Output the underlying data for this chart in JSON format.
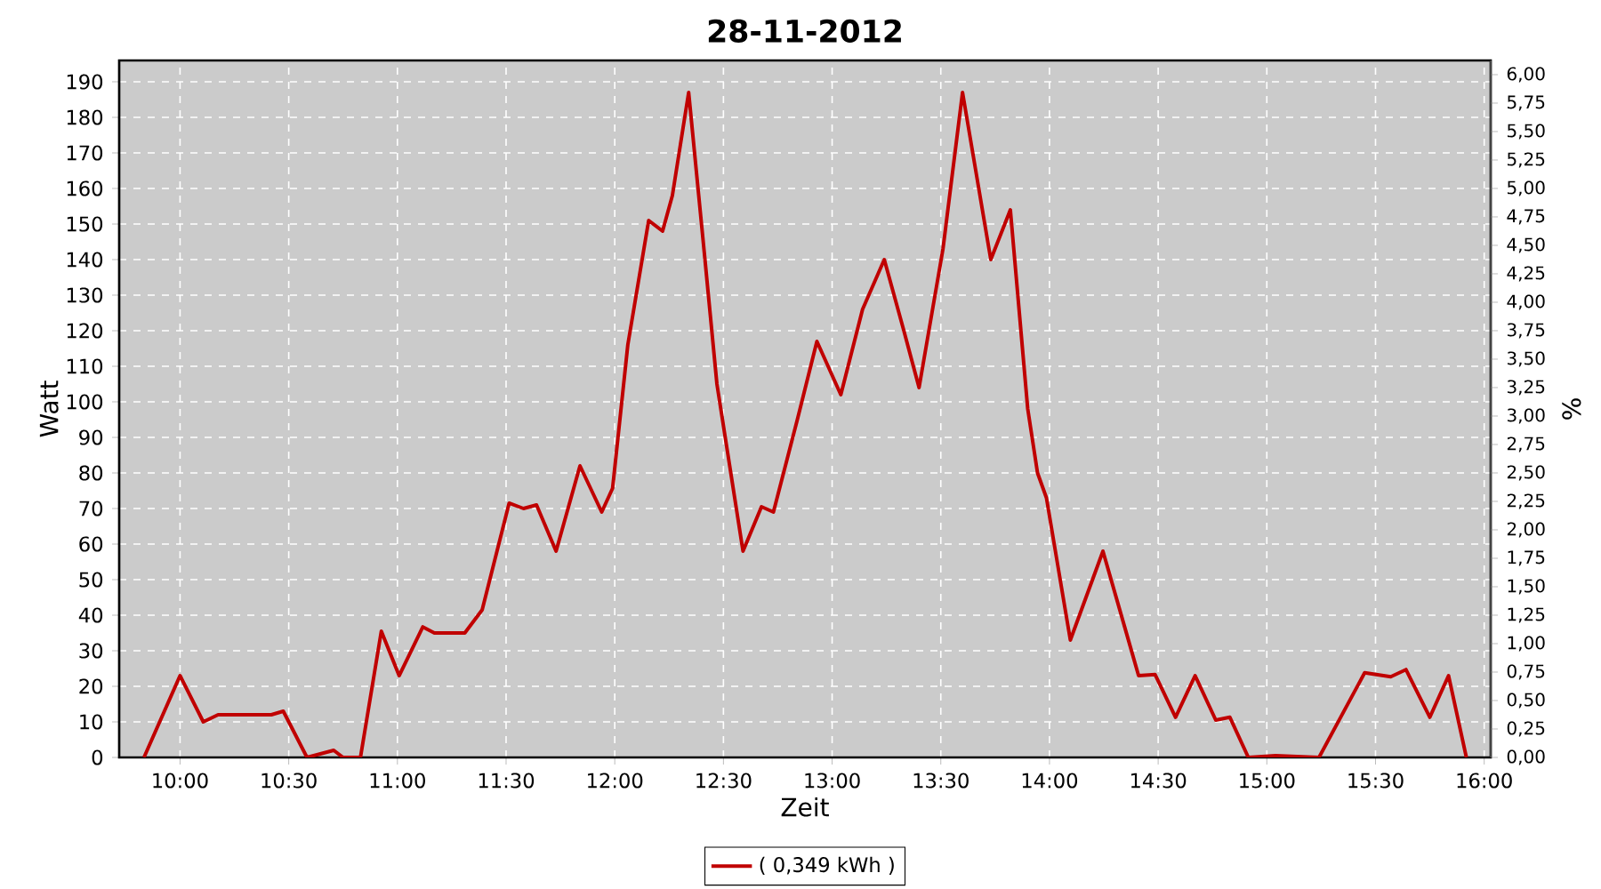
{
  "chart_data": {
    "type": "line",
    "title": "28-11-2012",
    "xlabel": "Zeit",
    "ylabel": "Watt",
    "y2label": "%",
    "x": [
      9.834,
      10.0,
      10.107,
      10.175,
      10.42,
      10.475,
      10.584,
      10.707,
      10.75,
      10.83,
      10.926,
      11.008,
      11.117,
      11.17,
      11.31,
      11.39,
      11.514,
      11.58,
      11.64,
      11.73,
      11.84,
      11.94,
      11.99,
      12.06,
      12.156,
      12.22,
      12.265,
      12.34,
      12.415,
      12.47,
      12.59,
      12.675,
      12.73,
      12.84,
      12.93,
      13.04,
      13.14,
      13.24,
      13.33,
      13.4,
      13.51,
      13.6,
      13.73,
      13.82,
      13.9,
      13.945,
      13.986,
      14.096,
      14.246,
      14.41,
      14.486,
      14.58,
      14.67,
      14.765,
      14.83,
      14.915,
      15.04,
      15.24,
      15.45,
      15.57,
      15.64,
      15.75,
      15.836,
      15.918
    ],
    "series": [
      {
        "name": "( 0,349 kWh )",
        "color": "#c00000",
        "values": [
          0,
          23,
          10,
          12,
          12,
          13,
          0,
          2,
          0,
          0,
          35.5,
          23,
          36.7,
          35,
          35,
          41.5,
          71.5,
          70,
          71,
          58,
          82,
          69,
          75.7,
          116,
          151,
          148,
          158,
          187,
          140,
          105,
          58,
          70.5,
          69,
          95,
          117,
          102,
          126,
          140,
          120,
          104,
          143,
          187,
          140,
          154,
          98,
          80,
          73,
          33,
          58,
          23,
          23.3,
          11.3,
          23,
          10.5,
          11.3,
          0,
          0.5,
          0,
          23.8,
          22.7,
          24.7,
          11.3,
          23,
          0
        ]
      }
    ],
    "xlim": [
      9.72,
      16.03
    ],
    "ylim": [
      0,
      196
    ],
    "y2lim": [
      0,
      6.125
    ],
    "xticks": [
      {
        "value": 10,
        "label": "10:00"
      },
      {
        "value": 10.5,
        "label": "10:30"
      },
      {
        "value": 11,
        "label": "11:00"
      },
      {
        "value": 11.5,
        "label": "11:30"
      },
      {
        "value": 12,
        "label": "12:00"
      },
      {
        "value": 12.5,
        "label": "12:30"
      },
      {
        "value": 13,
        "label": "13:00"
      },
      {
        "value": 13.5,
        "label": "13:30"
      },
      {
        "value": 14,
        "label": "14:00"
      },
      {
        "value": 14.5,
        "label": "14:30"
      },
      {
        "value": 15,
        "label": "15:00"
      },
      {
        "value": 15.5,
        "label": "15:30"
      },
      {
        "value": 16,
        "label": "16:00"
      }
    ],
    "yticks": [
      0,
      10,
      20,
      30,
      40,
      50,
      60,
      70,
      80,
      90,
      100,
      110,
      120,
      130,
      140,
      150,
      160,
      170,
      180,
      190
    ],
    "y2ticks": [
      {
        "value": 0,
        "label": "0,00"
      },
      {
        "value": 0.25,
        "label": "0,25"
      },
      {
        "value": 0.5,
        "label": "0,50"
      },
      {
        "value": 0.75,
        "label": "0,75"
      },
      {
        "value": 1,
        "label": "1,00"
      },
      {
        "value": 1.25,
        "label": "1,25"
      },
      {
        "value": 1.5,
        "label": "1,50"
      },
      {
        "value": 1.75,
        "label": "1,75"
      },
      {
        "value": 2,
        "label": "2,00"
      },
      {
        "value": 2.25,
        "label": "2,25"
      },
      {
        "value": 2.5,
        "label": "2,50"
      },
      {
        "value": 2.75,
        "label": "2,75"
      },
      {
        "value": 3,
        "label": "3,00"
      },
      {
        "value": 3.25,
        "label": "3,25"
      },
      {
        "value": 3.5,
        "label": "3,50"
      },
      {
        "value": 3.75,
        "label": "3,75"
      },
      {
        "value": 4,
        "label": "4,00"
      },
      {
        "value": 4.25,
        "label": "4,25"
      },
      {
        "value": 4.5,
        "label": "4,50"
      },
      {
        "value": 4.75,
        "label": "4,75"
      },
      {
        "value": 5,
        "label": "5,00"
      },
      {
        "value": 5.25,
        "label": "5,25"
      },
      {
        "value": 5.5,
        "label": "5,50"
      },
      {
        "value": 5.75,
        "label": "5,75"
      },
      {
        "value": 6,
        "label": "6,00"
      }
    ],
    "grid": true,
    "legend": "bottom"
  }
}
